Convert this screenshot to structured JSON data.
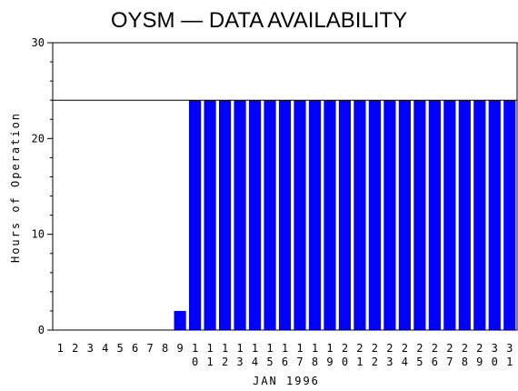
{
  "chart_data": {
    "type": "bar",
    "title": "OYSM — DATA AVAILABILITY",
    "xlabel": "JAN 1996",
    "ylabel": "Hours of Operation",
    "ylim": [
      0,
      30
    ],
    "yticks": [
      0,
      10,
      20,
      30
    ],
    "reference_line": 24,
    "bar_color": "#0000ff",
    "categories": [
      "1",
      "2",
      "3",
      "4",
      "5",
      "6",
      "7",
      "8",
      "9",
      "10",
      "11",
      "12",
      "13",
      "14",
      "15",
      "16",
      "17",
      "18",
      "19",
      "20",
      "21",
      "22",
      "23",
      "24",
      "25",
      "26",
      "27",
      "28",
      "29",
      "30",
      "31"
    ],
    "values": [
      0,
      0,
      0,
      0,
      0,
      0,
      0,
      0,
      2,
      24,
      24,
      24,
      24,
      24,
      24,
      24,
      24,
      24,
      24,
      24,
      24,
      24,
      24,
      24,
      24,
      24,
      24,
      24,
      24,
      24,
      24
    ]
  }
}
